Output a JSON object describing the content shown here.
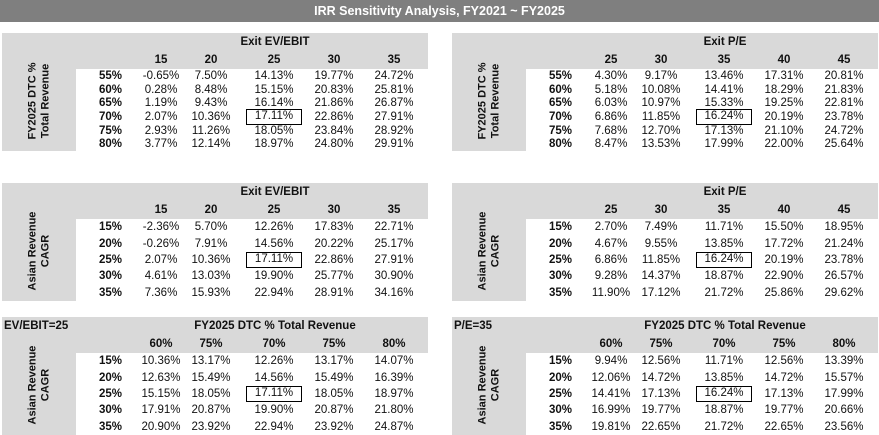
{
  "title": "IRR Sensitivity Analysis, FY2021 ~ FY2025",
  "panels": [
    {
      "corner": "",
      "col_title": "Exit EV/EBIT",
      "row_title": "FY2025 DTC % Total Revenue",
      "cols": [
        "15",
        "20",
        "25",
        "30",
        "35"
      ],
      "rows": [
        "55%",
        "60%",
        "65%",
        "70%",
        "75%",
        "80%"
      ],
      "values": [
        [
          "-0.65%",
          "7.50%",
          "14.13%",
          "19.77%",
          "24.72%"
        ],
        [
          "0.28%",
          "8.48%",
          "15.15%",
          "20.83%",
          "25.81%"
        ],
        [
          "1.19%",
          "9.43%",
          "16.14%",
          "21.86%",
          "26.87%"
        ],
        [
          "2.07%",
          "10.36%",
          "17.11%",
          "22.86%",
          "27.91%"
        ],
        [
          "2.93%",
          "11.26%",
          "18.05%",
          "23.84%",
          "28.92%"
        ],
        [
          "3.77%",
          "12.14%",
          "18.97%",
          "24.80%",
          "29.91%"
        ]
      ],
      "highlight": [
        3,
        2
      ]
    },
    {
      "corner": "",
      "col_title": "Exit P/E",
      "row_title": "FY2025 DTC % Total Revenue",
      "cols": [
        "25",
        "30",
        "35",
        "40",
        "45"
      ],
      "rows": [
        "55%",
        "60%",
        "65%",
        "70%",
        "75%",
        "80%"
      ],
      "values": [
        [
          "4.30%",
          "9.17%",
          "13.46%",
          "17.31%",
          "20.81%"
        ],
        [
          "5.18%",
          "10.08%",
          "14.41%",
          "18.29%",
          "21.83%"
        ],
        [
          "6.03%",
          "10.97%",
          "15.33%",
          "19.25%",
          "22.81%"
        ],
        [
          "6.86%",
          "11.85%",
          "16.24%",
          "20.19%",
          "23.78%"
        ],
        [
          "7.68%",
          "12.70%",
          "17.13%",
          "21.10%",
          "24.72%"
        ],
        [
          "8.47%",
          "13.53%",
          "17.99%",
          "22.00%",
          "25.64%"
        ]
      ],
      "highlight": [
        3,
        2
      ]
    },
    {
      "corner": "",
      "col_title": "Exit EV/EBIT",
      "row_title": "Asian Revenue CAGR",
      "cols": [
        "15",
        "20",
        "25",
        "30",
        "35"
      ],
      "rows": [
        "15%",
        "20%",
        "25%",
        "30%",
        "35%"
      ],
      "values": [
        [
          "-2.36%",
          "5.70%",
          "12.26%",
          "17.83%",
          "22.71%"
        ],
        [
          "-0.26%",
          "7.91%",
          "14.56%",
          "20.22%",
          "25.17%"
        ],
        [
          "2.07%",
          "10.36%",
          "17.11%",
          "22.86%",
          "27.91%"
        ],
        [
          "4.61%",
          "13.03%",
          "19.90%",
          "25.77%",
          "30.90%"
        ],
        [
          "7.36%",
          "15.93%",
          "22.94%",
          "28.91%",
          "34.16%"
        ]
      ],
      "highlight": [
        2,
        2
      ]
    },
    {
      "corner": "",
      "col_title": "Exit P/E",
      "row_title": "Asian Revenue CAGR",
      "cols": [
        "25",
        "30",
        "35",
        "40",
        "45"
      ],
      "rows": [
        "15%",
        "20%",
        "25%",
        "30%",
        "35%"
      ],
      "values": [
        [
          "2.70%",
          "7.49%",
          "11.71%",
          "15.50%",
          "18.95%"
        ],
        [
          "4.67%",
          "9.55%",
          "13.85%",
          "17.72%",
          "21.24%"
        ],
        [
          "6.86%",
          "11.85%",
          "16.24%",
          "20.19%",
          "23.78%"
        ],
        [
          "9.28%",
          "14.37%",
          "18.87%",
          "22.90%",
          "26.57%"
        ],
        [
          "11.90%",
          "17.12%",
          "21.72%",
          "25.86%",
          "29.62%"
        ]
      ],
      "highlight": [
        2,
        2
      ]
    },
    {
      "corner": "EV/EBIT=25",
      "col_title": "FY2025 DTC % Total Revenue",
      "row_title": "Asian Revenue CAGR",
      "cols": [
        "60%",
        "75%",
        "70%",
        "75%",
        "80%"
      ],
      "rows": [
        "15%",
        "20%",
        "25%",
        "30%",
        "35%"
      ],
      "values": [
        [
          "10.36%",
          "13.17%",
          "12.26%",
          "13.17%",
          "14.07%"
        ],
        [
          "12.63%",
          "15.49%",
          "14.56%",
          "15.49%",
          "16.39%"
        ],
        [
          "15.15%",
          "18.05%",
          "17.11%",
          "18.05%",
          "18.97%"
        ],
        [
          "17.91%",
          "20.87%",
          "19.90%",
          "20.87%",
          "21.80%"
        ],
        [
          "20.90%",
          "23.92%",
          "22.94%",
          "23.92%",
          "24.87%"
        ]
      ],
      "highlight": [
        2,
        2
      ]
    },
    {
      "corner": "P/E=35",
      "col_title": "FY2025 DTC % Total Revenue",
      "row_title": "Asian Revenue CAGR",
      "cols": [
        "60%",
        "75%",
        "70%",
        "75%",
        "80%"
      ],
      "rows": [
        "15%",
        "20%",
        "25%",
        "30%",
        "35%"
      ],
      "values": [
        [
          "9.94%",
          "12.56%",
          "11.71%",
          "12.56%",
          "13.39%"
        ],
        [
          "12.06%",
          "14.72%",
          "13.85%",
          "14.72%",
          "15.57%"
        ],
        [
          "14.41%",
          "17.13%",
          "16.24%",
          "17.13%",
          "17.99%"
        ],
        [
          "16.99%",
          "19.77%",
          "18.87%",
          "19.77%",
          "20.66%"
        ],
        [
          "19.81%",
          "22.65%",
          "21.72%",
          "22.65%",
          "23.56%"
        ]
      ],
      "highlight": [
        2,
        2
      ]
    }
  ]
}
